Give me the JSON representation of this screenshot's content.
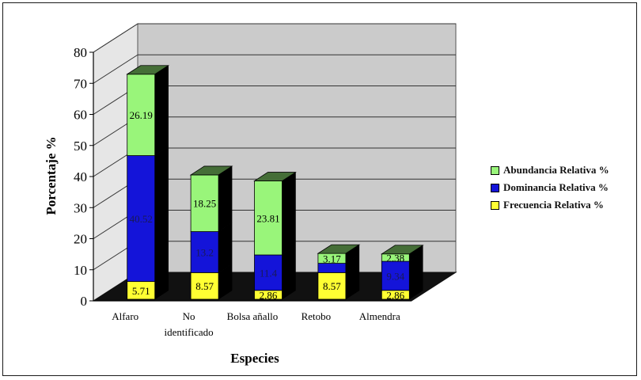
{
  "chart_data": {
    "type": "bar",
    "stacked": true,
    "three_d": true,
    "title": "",
    "xlabel": "Especies",
    "ylabel": "Porcentaje %",
    "ylim": [
      0,
      80
    ],
    "yticks": [
      "0",
      "10",
      "20",
      "30",
      "40",
      "50",
      "60",
      "70",
      "80"
    ],
    "categories": [
      [
        "Alfaro"
      ],
      [
        "No",
        "identificado"
      ],
      [
        "Bolsa añallo"
      ],
      [
        "Retobo"
      ],
      [
        "Almendra"
      ]
    ],
    "series": [
      {
        "name": "Frecuencia Relativa %",
        "color": "#ffff33",
        "values": [
          5.71,
          8.57,
          2.86,
          8.57,
          2.86
        ],
        "labels": [
          "5.71",
          "8.57",
          "2.86",
          "8.57",
          "2.86"
        ]
      },
      {
        "name": "Dominancia Relativa %",
        "color": "#1414d9",
        "values": [
          40.52,
          13.2,
          11.4,
          3.0,
          9.34
        ],
        "labels": [
          "40.52",
          "13.2",
          "11.4",
          "",
          "9.34"
        ]
      },
      {
        "name": "Abundancia Relativa %",
        "color": "#99f57a",
        "values": [
          26.19,
          18.25,
          23.81,
          3.17,
          2.38
        ],
        "labels": [
          "26.19",
          "18.25",
          "23.81",
          "3.17",
          "2.38"
        ]
      }
    ],
    "grid": true,
    "legend_position": "right"
  }
}
